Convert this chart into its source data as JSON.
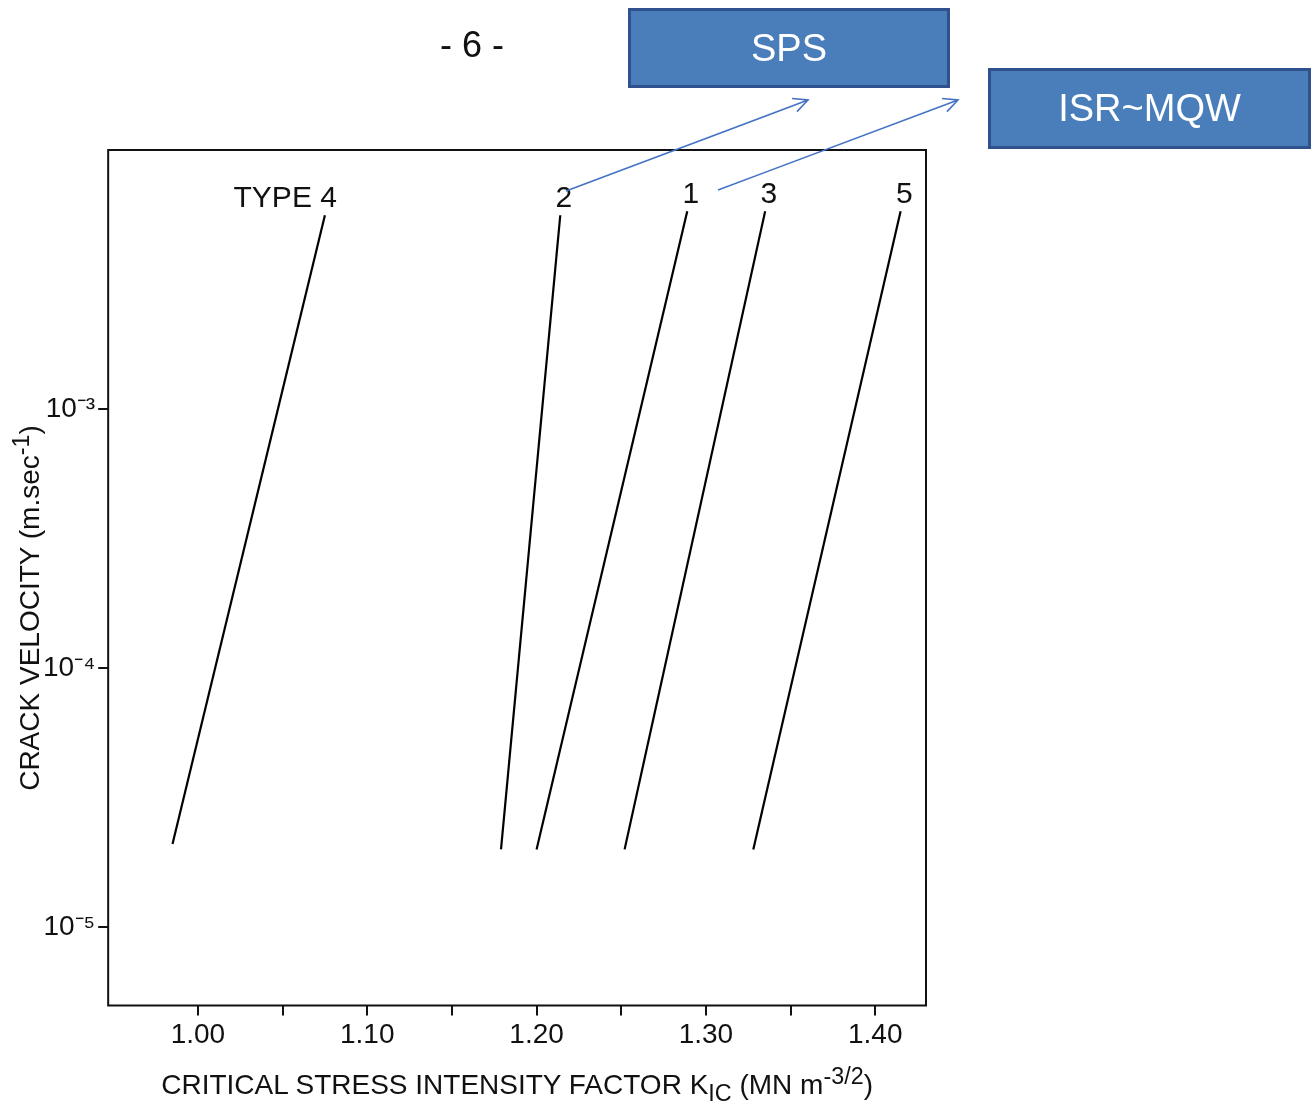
{
  "chart_data": {
    "type": "line",
    "xlabel": "CRITICAL STRESS INTENSITY FACTOR K$_{IC}$ (MN m$^{-3/2}$)",
    "ylabel": "CRACK VELOCITY (m.sec$^{-1}$)",
    "annotations": [
      "- 6 -",
      "SPS",
      "ISR~MQW"
    ],
    "log": "y",
    "grid": false,
    "legend": false,
    "marker": "none",
    "line_style": "solid",
    "xlim": [
      0.947,
      1.43
    ],
    "ylim": [
      5e-06,
      0.01
    ],
    "xticks": [
      {
        "value": 1.0,
        "label": "1.00"
      },
      {
        "value": 1.05,
        "label": null
      },
      {
        "value": 1.1,
        "label": "1.10"
      },
      {
        "value": 1.15,
        "label": null
      },
      {
        "value": 1.2,
        "label": "1.20"
      },
      {
        "value": 1.25,
        "label": null
      },
      {
        "value": 1.3,
        "label": "1.30"
      },
      {
        "value": 1.35,
        "label": null
      },
      {
        "value": 1.4,
        "label": "1.40"
      }
    ],
    "yticks": [
      {
        "value": 1e-05,
        "label": "10⁻⁵"
      },
      {
        "value": 0.0001,
        "label": "10⁻⁴"
      },
      {
        "value": 0.001,
        "label": "10⁻³"
      }
    ],
    "series": [
      {
        "name": "TYPE 4",
        "color": "#000000",
        "x": [
          0.985,
          1.075
        ],
        "values": [
          2.1e-05,
          0.0056
        ]
      },
      {
        "name": "2",
        "color": "#000000",
        "x": [
          1.179,
          1.214
        ],
        "values": [
          2e-05,
          0.0056
        ]
      },
      {
        "name": "1",
        "color": "#000000",
        "x": [
          1.2,
          1.289
        ],
        "values": [
          2e-05,
          0.0058
        ]
      },
      {
        "name": "3",
        "color": "#000000",
        "x": [
          1.252,
          1.335
        ],
        "values": [
          2e-05,
          0.0058
        ]
      },
      {
        "name": "5",
        "color": "#000000",
        "x": [
          1.328,
          1.415
        ],
        "values": [
          2e-05,
          0.0058
        ]
      }
    ]
  }
}
